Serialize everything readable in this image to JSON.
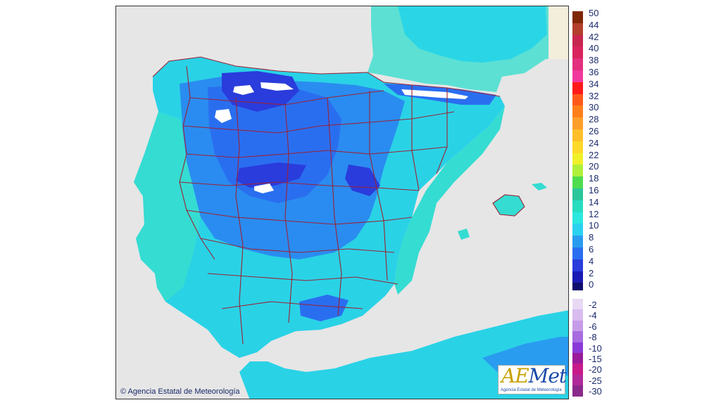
{
  "map": {
    "copyright": "© Agencia Estatal de Meteorología",
    "logo_text": "Met",
    "logo_prefix": "AE",
    "logo_subtitle": "Agencia Estatal de Meteorología",
    "colors": {
      "sea": "#e6e6e6",
      "foreign_land": "#e4e4e4",
      "province_border": "#9b2335",
      "snow": "#ffffff"
    }
  },
  "legend": {
    "positive": [
      {
        "label": "50",
        "color": "#7f2704"
      },
      {
        "label": "44",
        "color": "#b3402c"
      },
      {
        "label": "42",
        "color": "#c8264f"
      },
      {
        "label": "40",
        "color": "#d9245e"
      },
      {
        "label": "38",
        "color": "#e2307e"
      },
      {
        "label": "36",
        "color": "#f0399d"
      },
      {
        "label": "34",
        "color": "#ff1a1a"
      },
      {
        "label": "32",
        "color": "#ff5a1a"
      },
      {
        "label": "30",
        "color": "#ff7f1a"
      },
      {
        "label": "28",
        "color": "#ff9f2a"
      },
      {
        "label": "26",
        "color": "#ffbf2a"
      },
      {
        "label": "24",
        "color": "#ffd92a"
      },
      {
        "label": "22",
        "color": "#f0f02a"
      },
      {
        "label": "20",
        "color": "#aff03a"
      },
      {
        "label": "18",
        "color": "#4fdc4f"
      },
      {
        "label": "16",
        "color": "#2ac79b"
      },
      {
        "label": "14",
        "color": "#28dcc0"
      },
      {
        "label": "12",
        "color": "#2ae8e0"
      },
      {
        "label": "10",
        "color": "#2ad2f0"
      },
      {
        "label": "8",
        "color": "#2a9cf0"
      },
      {
        "label": "6",
        "color": "#2a6ef0"
      },
      {
        "label": "4",
        "color": "#2a3cdc"
      },
      {
        "label": "2",
        "color": "#1a1ab4"
      },
      {
        "label": "0",
        "color": "#0e0e6e"
      }
    ],
    "negative": [
      {
        "label": "-2",
        "color": "#e8d8f4"
      },
      {
        "label": "-4",
        "color": "#d8bcf0"
      },
      {
        "label": "-6",
        "color": "#c69ce8"
      },
      {
        "label": "-8",
        "color": "#a66ce0"
      },
      {
        "label": "-10",
        "color": "#8a3ad8"
      },
      {
        "label": "-15",
        "color": "#9a1a9a"
      },
      {
        "label": "-20",
        "color": "#c81a8a"
      },
      {
        "label": "-25",
        "color": "#b02a9a"
      },
      {
        "label": "-30",
        "color": "#8a2a8a"
      }
    ]
  }
}
